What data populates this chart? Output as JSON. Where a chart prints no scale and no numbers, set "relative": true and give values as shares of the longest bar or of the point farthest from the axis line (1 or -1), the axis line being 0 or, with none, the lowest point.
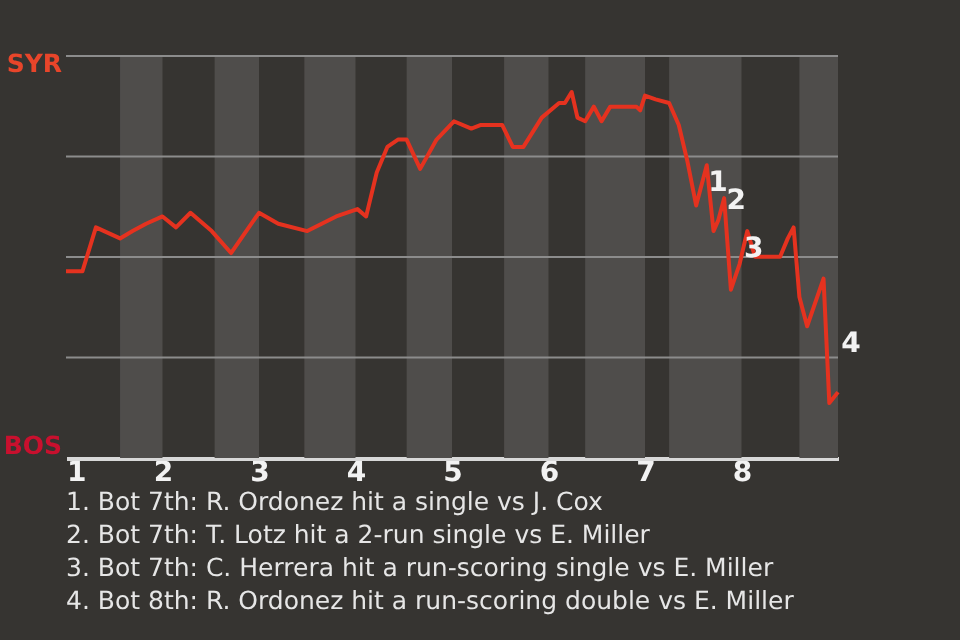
{
  "chart_data": {
    "type": "line",
    "relative": true,
    "xlim": [
      1,
      9
    ],
    "xticks": [
      1,
      2,
      3,
      4,
      5,
      6,
      7,
      8
    ],
    "grid": "y",
    "line_style": "solid",
    "series": [
      {
        "color": "#e5321f",
        "x": [
          1.0,
          1.17,
          1.31,
          1.56,
          1.69,
          1.83,
          2.0,
          2.14,
          2.29,
          2.51,
          2.71,
          3.0,
          3.2,
          3.5,
          3.8,
          4.02,
          4.11,
          4.22,
          4.33,
          4.44,
          4.53,
          4.67,
          4.84,
          5.02,
          5.2,
          5.3,
          5.52,
          5.63,
          5.74,
          5.93,
          6.11,
          6.17,
          6.24,
          6.3,
          6.38,
          6.47,
          6.55,
          6.64,
          6.91,
          6.95,
          7.0,
          7.11,
          7.25,
          7.35,
          7.44,
          7.53,
          7.64,
          7.71,
          7.76,
          7.82,
          7.89,
          7.98,
          8.06,
          8.14,
          8.4,
          8.48,
          8.54,
          8.6,
          8.68,
          8.85,
          8.91,
          9.0
        ],
        "values": [
          0.51,
          0.51,
          0.63,
          0.6,
          0.62,
          0.64,
          0.66,
          0.63,
          0.67,
          0.62,
          0.56,
          0.67,
          0.64,
          0.62,
          0.66,
          0.68,
          0.66,
          0.78,
          0.85,
          0.87,
          0.87,
          0.79,
          0.87,
          0.92,
          0.9,
          0.91,
          0.91,
          0.85,
          0.85,
          0.93,
          0.97,
          0.97,
          1,
          0.93,
          0.92,
          0.96,
          0.92,
          0.96,
          0.96,
          0.95,
          0.99,
          0.98,
          0.97,
          0.91,
          0.81,
          0.69,
          0.8,
          0.62,
          0.65,
          0.71,
          0.46,
          0.53,
          0.62,
          0.55,
          0.55,
          0.6,
          0.63,
          0.44,
          0.36,
          0.49,
          0.15,
          0.18
        ]
      }
    ],
    "bands": [
      {
        "axis": "x",
        "from": 1.56,
        "to": 2,
        "color": "#4f4d4b"
      },
      {
        "axis": "x",
        "from": 2.54,
        "to": 3,
        "color": "#4f4d4b"
      },
      {
        "axis": "x",
        "from": 3.47,
        "to": 4,
        "color": "#4f4d4b"
      },
      {
        "axis": "x",
        "from": 4.53,
        "to": 5,
        "color": "#4f4d4b"
      },
      {
        "axis": "x",
        "from": 5.54,
        "to": 6,
        "color": "#4f4d4b"
      },
      {
        "axis": "x",
        "from": 6.38,
        "to": 7,
        "color": "#4f4d4b"
      },
      {
        "axis": "x",
        "from": 7.25,
        "to": 8,
        "color": "#4f4d4b"
      },
      {
        "axis": "x",
        "from": 8.6,
        "to": 9,
        "color": "#4f4d4b"
      }
    ],
    "annotations": [
      {
        "text": "1",
        "x": 7.59,
        "y": 0.73
      },
      {
        "text": "2",
        "x": 7.78,
        "y": 0.68
      },
      {
        "text": "3",
        "x": 7.96,
        "y": 0.55
      },
      {
        "text": "4",
        "x": 8.97,
        "y": 0.29
      },
      "SYR",
      "BOS",
      "1. Bot 7th: R. Ordonez hit a single vs J. Cox",
      "2. Bot 7th: T. Lotz hit a 2-run single vs E. Miller",
      "3. Bot 7th: C. Herrera hit a run-scoring single vs E. Miller",
      "4. Bot 8th: R. Ordonez hit a run-scoring double vs E. Miller"
    ]
  }
}
